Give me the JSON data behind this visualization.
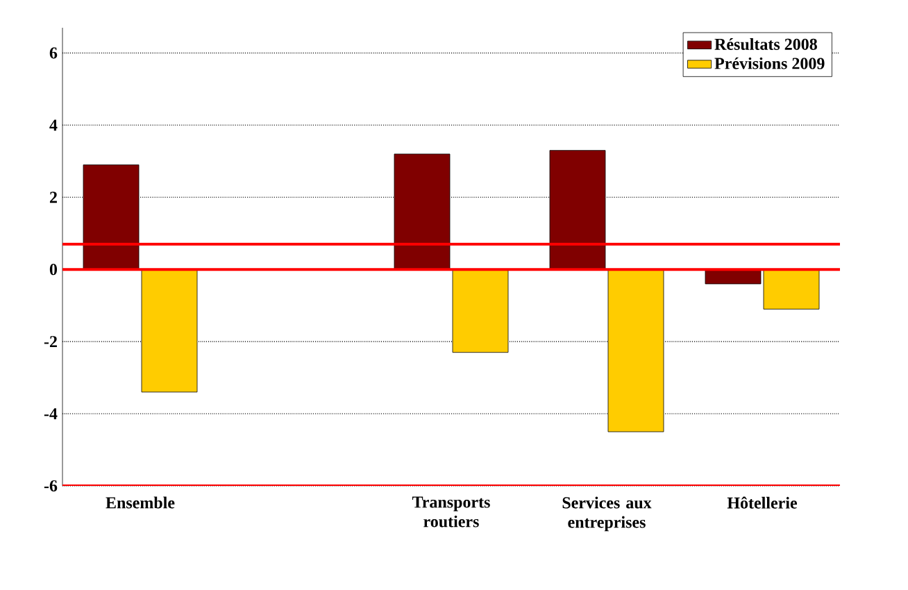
{
  "chart_data": {
    "type": "bar",
    "categories": [
      "Ensemble",
      null,
      "Transports routiers",
      "Services aux entreprises",
      "Hôtellerie"
    ],
    "series": [
      {
        "name": "Résultats 2008",
        "color": "#800000",
        "values": [
          2.9,
          null,
          3.2,
          3.3,
          -0.4
        ]
      },
      {
        "name": "Prévisions 2009",
        "color": "#ffcc00",
        "values": [
          -3.4,
          null,
          -2.3,
          -4.5,
          -1.1
        ]
      }
    ],
    "ylim": [
      -6,
      6.7
    ],
    "yticks": [
      -6,
      -4,
      -2,
      0,
      2,
      4,
      6
    ],
    "grid": "y",
    "legend": "top right",
    "ref_lines": [
      {
        "axis": "y",
        "value": 0.7,
        "color": "#ff0000"
      },
      {
        "axis": "y",
        "value": 0,
        "color": "#ff0000"
      },
      {
        "axis": "y",
        "value": -6,
        "color": "#ff0000"
      }
    ]
  }
}
